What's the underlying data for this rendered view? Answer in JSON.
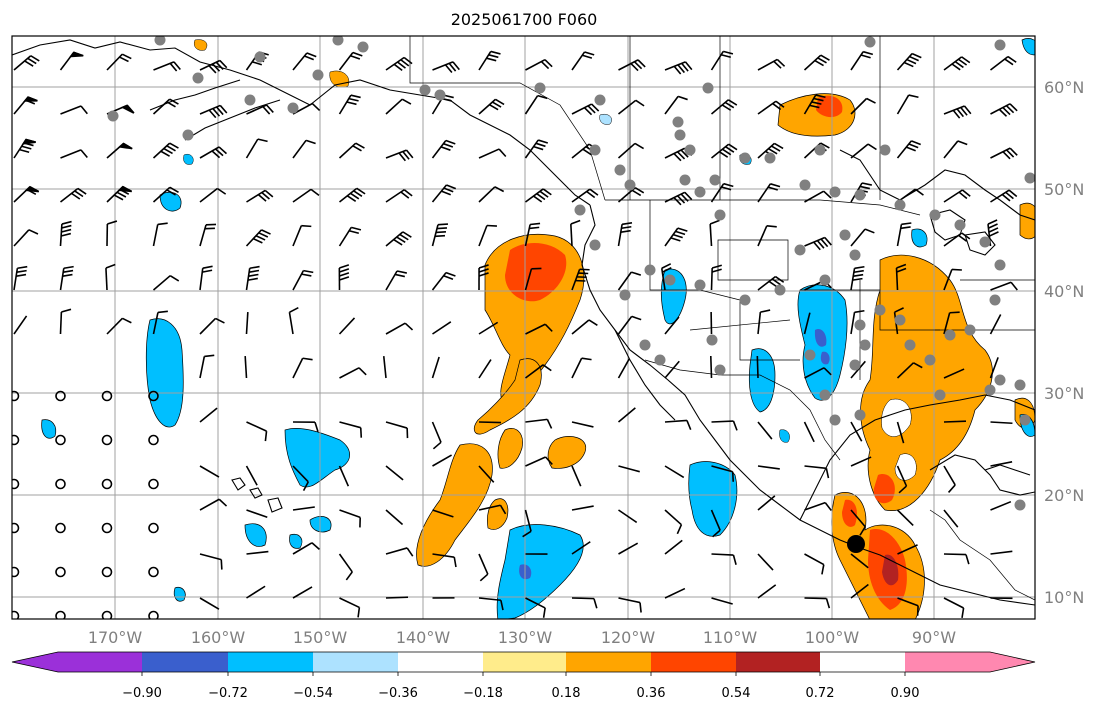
{
  "title": "2025061700 F060",
  "map": {
    "lon_range": [
      -180,
      -80
    ],
    "lat_range": [
      8,
      65
    ],
    "lon_ticks": [
      "170°W",
      "160°W",
      "150°W",
      "140°W",
      "130°W",
      "120°W",
      "110°W",
      "100°W",
      "90°W"
    ],
    "lat_ticks": [
      "60°N",
      "50°N",
      "40°N",
      "30°N",
      "20°N",
      "10°N"
    ],
    "grid": true,
    "fields": [
      "contour field (colorbar)",
      "wind barbs",
      "gray station dots",
      "coastlines and borders"
    ],
    "colors": {
      "grid": "#a0a0a0",
      "tick_label": "#808080",
      "station_dot": "#808080"
    }
  },
  "colorbar": {
    "ticks": [
      "−0.90",
      "−0.72",
      "−0.54",
      "−0.36",
      "−0.18",
      "0.18",
      "0.36",
      "0.54",
      "0.72",
      "0.90"
    ],
    "colors": [
      "#9b30d9",
      "#00008b",
      "#3a5fcd",
      "#00bfff",
      "#ade2ff",
      "#ffffff",
      "#ffec8b",
      "#ffa500",
      "#ff4500",
      "#b22222",
      "#ff88b0"
    ]
  }
}
